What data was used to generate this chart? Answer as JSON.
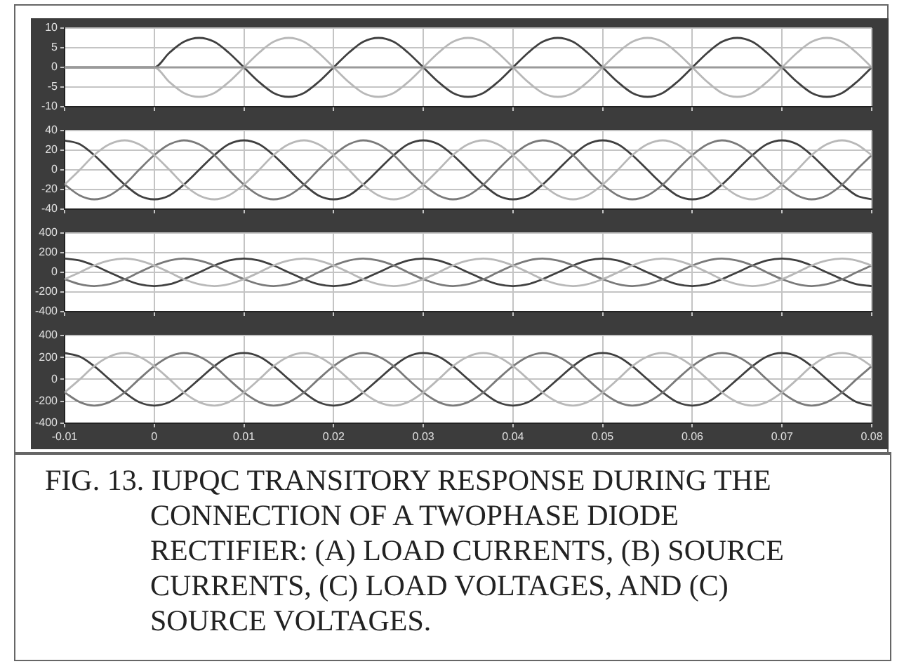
{
  "chart_data": [
    {
      "type": "line",
      "xlim": [
        -0.01,
        0.08
      ],
      "xticks": [
        -0.01,
        0,
        0.01,
        0.02,
        0.03,
        0.04,
        0.05,
        0.06,
        0.07,
        0.08
      ],
      "ylim": [
        -10,
        10
      ],
      "yticks": [
        -10,
        -5,
        0,
        5,
        10
      ],
      "grid": true,
      "tick_labels": "y",
      "x": [
        -0.01,
        -0.0083,
        -0.0067,
        -0.005,
        -0.0033,
        -0.0017,
        0,
        0.0017,
        0.0033,
        0.005,
        0.0067,
        0.0083,
        0.01,
        0.0117,
        0.0133,
        0.015,
        0.0167,
        0.0183,
        0.02,
        0.0217,
        0.0233,
        0.025,
        0.0267,
        0.0283,
        0.03,
        0.0317,
        0.0333,
        0.035,
        0.0367,
        0.0383,
        0.04,
        0.0417,
        0.0433,
        0.045,
        0.0467,
        0.0483,
        0.05,
        0.0517,
        0.0533,
        0.055,
        0.0567,
        0.0583,
        0.06,
        0.0617,
        0.0633,
        0.065,
        0.0667,
        0.0683,
        0.07,
        0.0717,
        0.0733,
        0.075,
        0.0767,
        0.0783,
        0.08
      ],
      "series": [
        {
          "color": "#9a9a9a",
          "values": [
            0,
            0,
            0,
            0,
            0,
            0,
            0,
            0,
            0,
            0,
            0,
            0,
            0,
            0,
            0,
            0,
            0,
            0,
            0,
            0,
            0,
            0,
            0,
            0,
            0,
            0,
            0,
            0,
            0,
            0,
            0,
            0,
            0,
            0,
            0,
            0,
            0,
            0,
            0,
            0,
            0,
            0,
            0,
            0,
            0,
            0,
            0,
            0,
            0,
            0,
            0,
            0,
            0,
            0,
            0
          ]
        },
        {
          "color": "#b8b8b8",
          "values": [
            0,
            0,
            0,
            0,
            0,
            0,
            0,
            -3.75,
            -6.5,
            -7.5,
            -6.5,
            -3.75,
            0,
            3.75,
            6.5,
            7.5,
            6.5,
            3.75,
            0,
            -3.75,
            -6.5,
            -7.5,
            -6.5,
            -3.75,
            0,
            3.75,
            6.5,
            7.5,
            6.5,
            3.75,
            0,
            -3.75,
            -6.5,
            -7.5,
            -6.5,
            -3.75,
            0,
            3.75,
            6.5,
            7.5,
            6.5,
            3.75,
            0,
            -3.75,
            -6.5,
            -7.5,
            -6.5,
            -3.75,
            0,
            3.75,
            6.5,
            7.5,
            6.5,
            3.75,
            0
          ]
        },
        {
          "color": "#404040",
          "values": [
            0,
            0,
            0,
            0,
            0,
            0,
            0,
            3.75,
            6.5,
            7.5,
            6.5,
            3.75,
            0,
            -3.75,
            -6.5,
            -7.5,
            -6.5,
            -3.75,
            0,
            3.75,
            6.5,
            7.5,
            6.5,
            3.75,
            0,
            -3.75,
            -6.5,
            -7.5,
            -6.5,
            -3.75,
            0,
            3.75,
            6.5,
            7.5,
            6.5,
            3.75,
            0,
            -3.75,
            -6.5,
            -7.5,
            -6.5,
            -3.75,
            0,
            3.75,
            6.5,
            7.5,
            6.5,
            3.75,
            0,
            -3.75,
            -6.5,
            -7.5,
            -6.5,
            -3.75,
            0
          ]
        }
      ]
    },
    {
      "type": "line",
      "xlim": [
        -0.01,
        0.08
      ],
      "xticks": [
        -0.01,
        0,
        0.01,
        0.02,
        0.03,
        0.04,
        0.05,
        0.06,
        0.07,
        0.08
      ],
      "ylim": [
        -40,
        40
      ],
      "yticks": [
        -40,
        -20,
        0,
        20,
        40
      ],
      "grid": true,
      "tick_labels": "y",
      "x": [
        -0.01,
        -0.0083,
        -0.0067,
        -0.005,
        -0.0033,
        -0.0017,
        0,
        0.0017,
        0.0033,
        0.005,
        0.0067,
        0.0083,
        0.01,
        0.0117,
        0.0133,
        0.015,
        0.0167,
        0.0183,
        0.02,
        0.0217,
        0.0233,
        0.025,
        0.0267,
        0.0283,
        0.03,
        0.0317,
        0.0333,
        0.035,
        0.0367,
        0.0383,
        0.04,
        0.0417,
        0.0433,
        0.045,
        0.0467,
        0.0483,
        0.05,
        0.0517,
        0.0533,
        0.055,
        0.0567,
        0.0583,
        0.06,
        0.0617,
        0.0633,
        0.065,
        0.0667,
        0.0683,
        0.07,
        0.0717,
        0.0733,
        0.075,
        0.0767,
        0.0783,
        0.08
      ],
      "series": [
        {
          "color": "#b8b8b8",
          "values": [
            -15,
            0,
            15,
            26,
            30,
            26,
            15,
            0,
            -15,
            -26,
            -30,
            -26,
            -15,
            0,
            15,
            26,
            30,
            26,
            15,
            0,
            -15,
            -26,
            -30,
            -26,
            -15,
            0,
            15,
            26,
            30,
            26,
            15,
            0,
            -15,
            -26,
            -30,
            -26,
            -15,
            0,
            15,
            26,
            30,
            26,
            15,
            0,
            -15,
            -26,
            -30,
            -26,
            -15,
            0,
            15,
            26,
            30,
            26,
            15
          ]
        },
        {
          "color": "#7a7a7a",
          "values": [
            -15,
            -26,
            -30,
            -26,
            -15,
            0,
            15,
            26,
            30,
            26,
            15,
            0,
            -15,
            -26,
            -30,
            -26,
            -15,
            0,
            15,
            26,
            30,
            26,
            15,
            0,
            -15,
            -26,
            -30,
            -26,
            -15,
            0,
            15,
            26,
            30,
            26,
            15,
            0,
            -15,
            -26,
            -30,
            -26,
            -15,
            0,
            15,
            26,
            30,
            26,
            15,
            0,
            -15,
            -26,
            -30,
            -26,
            -15,
            0,
            15
          ]
        },
        {
          "color": "#404040",
          "values": [
            30,
            26,
            15,
            0,
            -15,
            -26,
            -30,
            -26,
            -15,
            0,
            15,
            26,
            30,
            26,
            15,
            0,
            -15,
            -26,
            -30,
            -26,
            -15,
            0,
            15,
            26,
            30,
            26,
            15,
            0,
            -15,
            -26,
            -30,
            -26,
            -15,
            0,
            15,
            26,
            30,
            26,
            15,
            0,
            -15,
            -26,
            -30,
            -26,
            -15,
            0,
            15,
            26,
            30,
            26,
            15,
            0,
            -15,
            -26,
            -30
          ]
        }
      ]
    },
    {
      "type": "line",
      "xlim": [
        -0.01,
        0.08
      ],
      "xticks": [
        -0.01,
        0,
        0.01,
        0.02,
        0.03,
        0.04,
        0.05,
        0.06,
        0.07,
        0.08
      ],
      "ylim": [
        -400,
        400
      ],
      "yticks": [
        -400,
        -200,
        0,
        200,
        400
      ],
      "grid": true,
      "tick_labels": "y",
      "x": [
        -0.01,
        -0.0083,
        -0.0067,
        -0.005,
        -0.0033,
        -0.0017,
        0,
        0.0017,
        0.0033,
        0.005,
        0.0067,
        0.0083,
        0.01,
        0.0117,
        0.0133,
        0.015,
        0.0167,
        0.0183,
        0.02,
        0.0217,
        0.0233,
        0.025,
        0.0267,
        0.0283,
        0.03,
        0.0317,
        0.0333,
        0.035,
        0.0367,
        0.0383,
        0.04,
        0.0417,
        0.0433,
        0.045,
        0.0467,
        0.0483,
        0.05,
        0.0517,
        0.0533,
        0.055,
        0.0567,
        0.0583,
        0.06,
        0.0617,
        0.0633,
        0.065,
        0.0667,
        0.0683,
        0.07,
        0.0717,
        0.0733,
        0.075,
        0.0767,
        0.0783,
        0.08
      ],
      "series": [
        {
          "color": "#b8b8b8",
          "values": [
            -70,
            0,
            70,
            121,
            140,
            121,
            70,
            0,
            -70,
            -121,
            -140,
            -121,
            -70,
            0,
            70,
            121,
            140,
            121,
            70,
            0,
            -70,
            -121,
            -140,
            -121,
            -70,
            0,
            70,
            121,
            140,
            121,
            70,
            0,
            -70,
            -121,
            -140,
            -121,
            -70,
            0,
            70,
            121,
            140,
            121,
            70,
            0,
            -70,
            -121,
            -140,
            -121,
            -70,
            0,
            70,
            121,
            140,
            121,
            70
          ]
        },
        {
          "color": "#7a7a7a",
          "values": [
            -70,
            -121,
            -140,
            -121,
            -70,
            0,
            70,
            121,
            140,
            121,
            70,
            0,
            -70,
            -121,
            -140,
            -121,
            -70,
            0,
            70,
            121,
            140,
            121,
            70,
            0,
            -70,
            -121,
            -140,
            -121,
            -70,
            0,
            70,
            121,
            140,
            121,
            70,
            0,
            -70,
            -121,
            -140,
            -121,
            -70,
            0,
            70,
            121,
            140,
            121,
            70,
            0,
            -70,
            -121,
            -140,
            -121,
            -70,
            0,
            70
          ]
        },
        {
          "color": "#404040",
          "values": [
            140,
            121,
            70,
            0,
            -70,
            -121,
            -140,
            -121,
            -70,
            0,
            70,
            121,
            140,
            121,
            70,
            0,
            -70,
            -121,
            -140,
            -121,
            -70,
            0,
            70,
            121,
            140,
            121,
            70,
            0,
            -70,
            -121,
            -140,
            -121,
            -70,
            0,
            70,
            121,
            140,
            121,
            70,
            0,
            -70,
            -121,
            -140,
            -121,
            -70,
            0,
            70,
            121,
            140,
            121,
            70,
            0,
            -70,
            -121,
            -140
          ]
        }
      ]
    },
    {
      "type": "line",
      "xlim": [
        -0.01,
        0.08
      ],
      "xticks": [
        -0.01,
        0,
        0.01,
        0.02,
        0.03,
        0.04,
        0.05,
        0.06,
        0.07,
        0.08
      ],
      "ylim": [
        -400,
        400
      ],
      "yticks": [
        -400,
        -200,
        0,
        200,
        400
      ],
      "grid": true,
      "x": [
        -0.01,
        -0.0083,
        -0.0067,
        -0.005,
        -0.0033,
        -0.0017,
        0,
        0.0017,
        0.0033,
        0.005,
        0.0067,
        0.0083,
        0.01,
        0.0117,
        0.0133,
        0.015,
        0.0167,
        0.0183,
        0.02,
        0.0217,
        0.0233,
        0.025,
        0.0267,
        0.0283,
        0.03,
        0.0317,
        0.0333,
        0.035,
        0.0367,
        0.0383,
        0.04,
        0.0417,
        0.0433,
        0.045,
        0.0467,
        0.0483,
        0.05,
        0.0517,
        0.0533,
        0.055,
        0.0567,
        0.0583,
        0.06,
        0.0617,
        0.0633,
        0.065,
        0.0667,
        0.0683,
        0.07,
        0.0717,
        0.0733,
        0.075,
        0.0767,
        0.0783,
        0.08
      ],
      "series": [
        {
          "color": "#b8b8b8",
          "values": [
            -120,
            0,
            120,
            208,
            240,
            208,
            120,
            0,
            -120,
            -208,
            -240,
            -208,
            -120,
            0,
            120,
            208,
            240,
            208,
            120,
            0,
            -120,
            -208,
            -240,
            -208,
            -120,
            0,
            120,
            208,
            240,
            208,
            120,
            0,
            -120,
            -208,
            -240,
            -208,
            -120,
            0,
            120,
            208,
            240,
            208,
            120,
            0,
            -120,
            -208,
            -240,
            -208,
            -120,
            0,
            120,
            208,
            240,
            208,
            120
          ]
        },
        {
          "color": "#7a7a7a",
          "values": [
            -120,
            -208,
            -240,
            -208,
            -120,
            0,
            120,
            208,
            240,
            208,
            120,
            0,
            -120,
            -208,
            -240,
            -208,
            -120,
            0,
            120,
            208,
            240,
            208,
            120,
            0,
            -120,
            -208,
            -240,
            -208,
            -120,
            0,
            120,
            208,
            240,
            208,
            120,
            0,
            -120,
            -208,
            -240,
            -208,
            -120,
            0,
            120,
            208,
            240,
            208,
            120,
            0,
            -120,
            -208,
            -240,
            -208,
            -120,
            0,
            120
          ]
        },
        {
          "color": "#404040",
          "values": [
            240,
            208,
            120,
            0,
            -120,
            -208,
            -240,
            -208,
            -120,
            0,
            120,
            208,
            240,
            208,
            120,
            0,
            -120,
            -208,
            -240,
            -208,
            -120,
            0,
            120,
            208,
            240,
            208,
            120,
            0,
            -120,
            -208,
            -240,
            -208,
            -120,
            0,
            120,
            208,
            240,
            208,
            120,
            0,
            -120,
            -208,
            -240,
            -208,
            -120,
            0,
            120,
            208,
            240,
            208,
            120,
            0,
            -120,
            -208,
            -240
          ]
        }
      ],
      "annotations": [
        "FIG. 13. IUPQC TRANSITORY RESPONSE DURING THE CONNECTION OF A TWOPHASE DIODE RECTIFIER: (A) LOAD CURRENTS, (B) SOURCE CURRENTS, (C) LOAD VOLTAGES, AND (C) SOURCE VOLTAGES."
      ]
    }
  ]
}
